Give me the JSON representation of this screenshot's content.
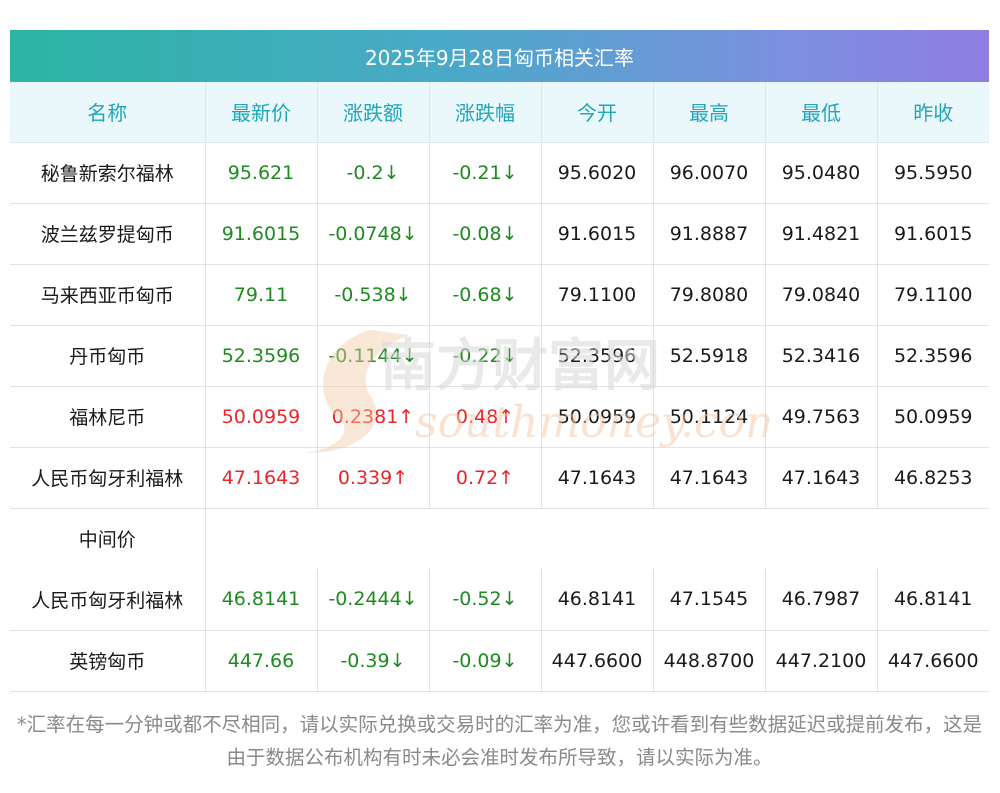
{
  "title": "2025年9月28日匈币相关汇率",
  "columns": [
    "名称",
    "最新价",
    "涨跌额",
    "涨跌幅",
    "今开",
    "最高",
    "最低",
    "昨收"
  ],
  "rows": [
    {
      "name": "秘鲁新索尔福林",
      "latest": "95.621",
      "change": "-0.2↓",
      "pct": "-0.21↓",
      "open": "95.6020",
      "high": "96.0070",
      "low": "95.0480",
      "prev": "95.5950",
      "dir": "down"
    },
    {
      "name": "波兰兹罗提匈币",
      "latest": "91.6015",
      "change": "-0.0748↓",
      "pct": "-0.08↓",
      "open": "91.6015",
      "high": "91.8887",
      "low": "91.4821",
      "prev": "91.6015",
      "dir": "down"
    },
    {
      "name": "马来西亚币匈币",
      "latest": "79.11",
      "change": "-0.538↓",
      "pct": "-0.68↓",
      "open": "79.1100",
      "high": "79.8080",
      "low": "79.0840",
      "prev": "79.1100",
      "dir": "down"
    },
    {
      "name": "丹币匈币",
      "latest": "52.3596",
      "change": "-0.1144↓",
      "pct": "-0.22↓",
      "open": "52.3596",
      "high": "52.5918",
      "low": "52.3416",
      "prev": "52.3596",
      "dir": "down"
    },
    {
      "name": "福林尼币",
      "latest": "50.0959",
      "change": "0.2381↑",
      "pct": "0.48↑",
      "open": "50.0959",
      "high": "50.1124",
      "low": "49.7563",
      "prev": "50.0959",
      "dir": "up"
    },
    {
      "name": "人民币匈牙利福林",
      "latest": "47.1643",
      "change": "0.339↑",
      "pct": "0.72↑",
      "open": "47.1643",
      "high": "47.1643",
      "low": "47.1643",
      "prev": "46.8253",
      "dir": "up"
    }
  ],
  "mid_label": "中间价",
  "rows_after": [
    {
      "name": "人民币匈牙利福林",
      "latest": "46.8141",
      "change": "-0.2444↓",
      "pct": "-0.52↓",
      "open": "46.8141",
      "high": "47.1545",
      "low": "46.7987",
      "prev": "46.8141",
      "dir": "down"
    },
    {
      "name": "英镑匈币",
      "latest": "447.66",
      "change": "-0.39↓",
      "pct": "-0.09↓",
      "open": "447.6600",
      "high": "448.8700",
      "low": "447.2100",
      "prev": "447.6600",
      "dir": "down"
    }
  ],
  "footnote": "*汇率在每一分钟或都不尽相同，请以实际兑换或交易时的汇率为准，您或许看到有些数据延迟或提前发布，这是由于数据公布机构有时未必会准时发布所导致，请以实际为准。",
  "watermark": {
    "cn": "南方财富网",
    "en": "southmoney.com"
  },
  "colors": {
    "up": "#e8262a",
    "down": "#1f8a1f",
    "header_text": "#1fa6b8"
  }
}
